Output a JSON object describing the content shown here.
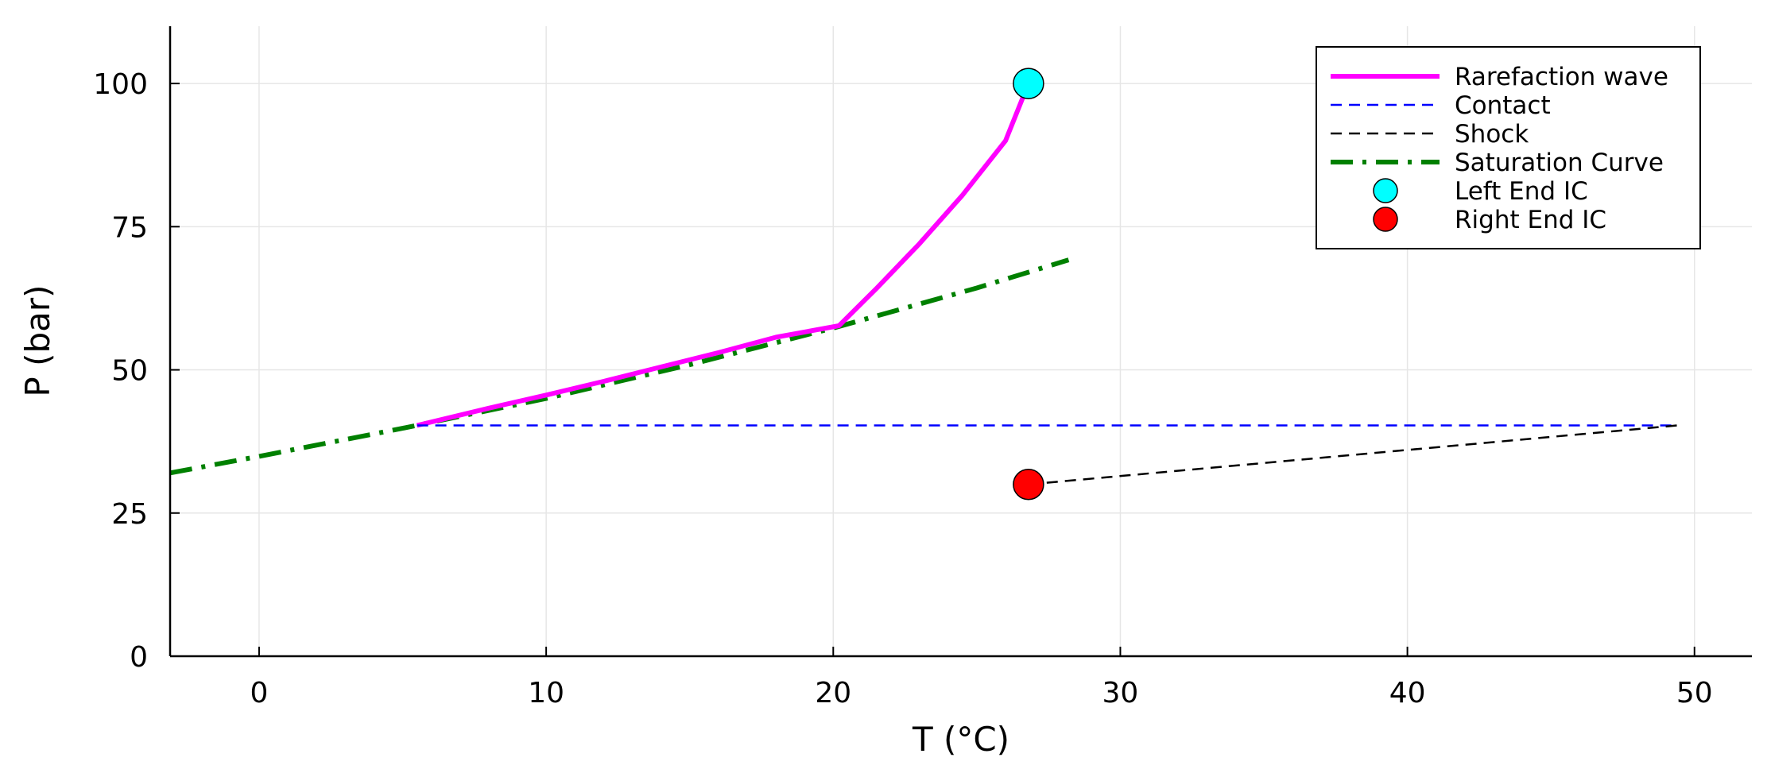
{
  "chart_data": {
    "type": "line",
    "title": "",
    "xlabel": "T (°C)",
    "ylabel": "P (bar)",
    "xlim": [
      -3.1,
      52
    ],
    "ylim": [
      0,
      110
    ],
    "xticks": [
      0,
      10,
      20,
      30,
      40,
      50
    ],
    "yticks": [
      0,
      25,
      50,
      75,
      100
    ],
    "grid": true,
    "legend_position": "top-right",
    "series": [
      {
        "name": "Rarefaction wave",
        "kind": "line",
        "color": "#ff00ff",
        "style": "solid",
        "x": [
          5.5,
          8,
          10,
          12,
          14,
          16,
          18,
          20.2,
          21.5,
          23,
          24.5,
          26,
          26.8
        ],
        "y": [
          40.3,
          43.3,
          45.6,
          48.0,
          50.5,
          53.0,
          55.7,
          57.7,
          64.2,
          72.0,
          80.5,
          90.0,
          100.0
        ]
      },
      {
        "name": "Contact",
        "kind": "line",
        "color": "#0000ff",
        "style": "dashed",
        "x": [
          5.5,
          49.4
        ],
        "y": [
          40.3,
          40.3
        ]
      },
      {
        "name": "Shock",
        "kind": "line",
        "color": "#000000",
        "style": "dashed",
        "x": [
          26.8,
          49.4
        ],
        "y": [
          30.0,
          40.3
        ]
      },
      {
        "name": "Saturation Curve",
        "kind": "line",
        "color": "#008000",
        "style": "dashdot",
        "x": [
          -3.1,
          0,
          5,
          10,
          15,
          20,
          25,
          28.2
        ],
        "y": [
          32.0,
          34.9,
          39.8,
          45.0,
          50.9,
          57.3,
          64.3,
          69.2
        ]
      },
      {
        "name": "Left End IC",
        "kind": "scatter",
        "color": "#00ffff",
        "x": [
          26.8
        ],
        "y": [
          100.0
        ]
      },
      {
        "name": "Right End IC",
        "kind": "scatter",
        "color": "#ff0000",
        "x": [
          26.8
        ],
        "y": [
          30.0
        ]
      }
    ]
  }
}
